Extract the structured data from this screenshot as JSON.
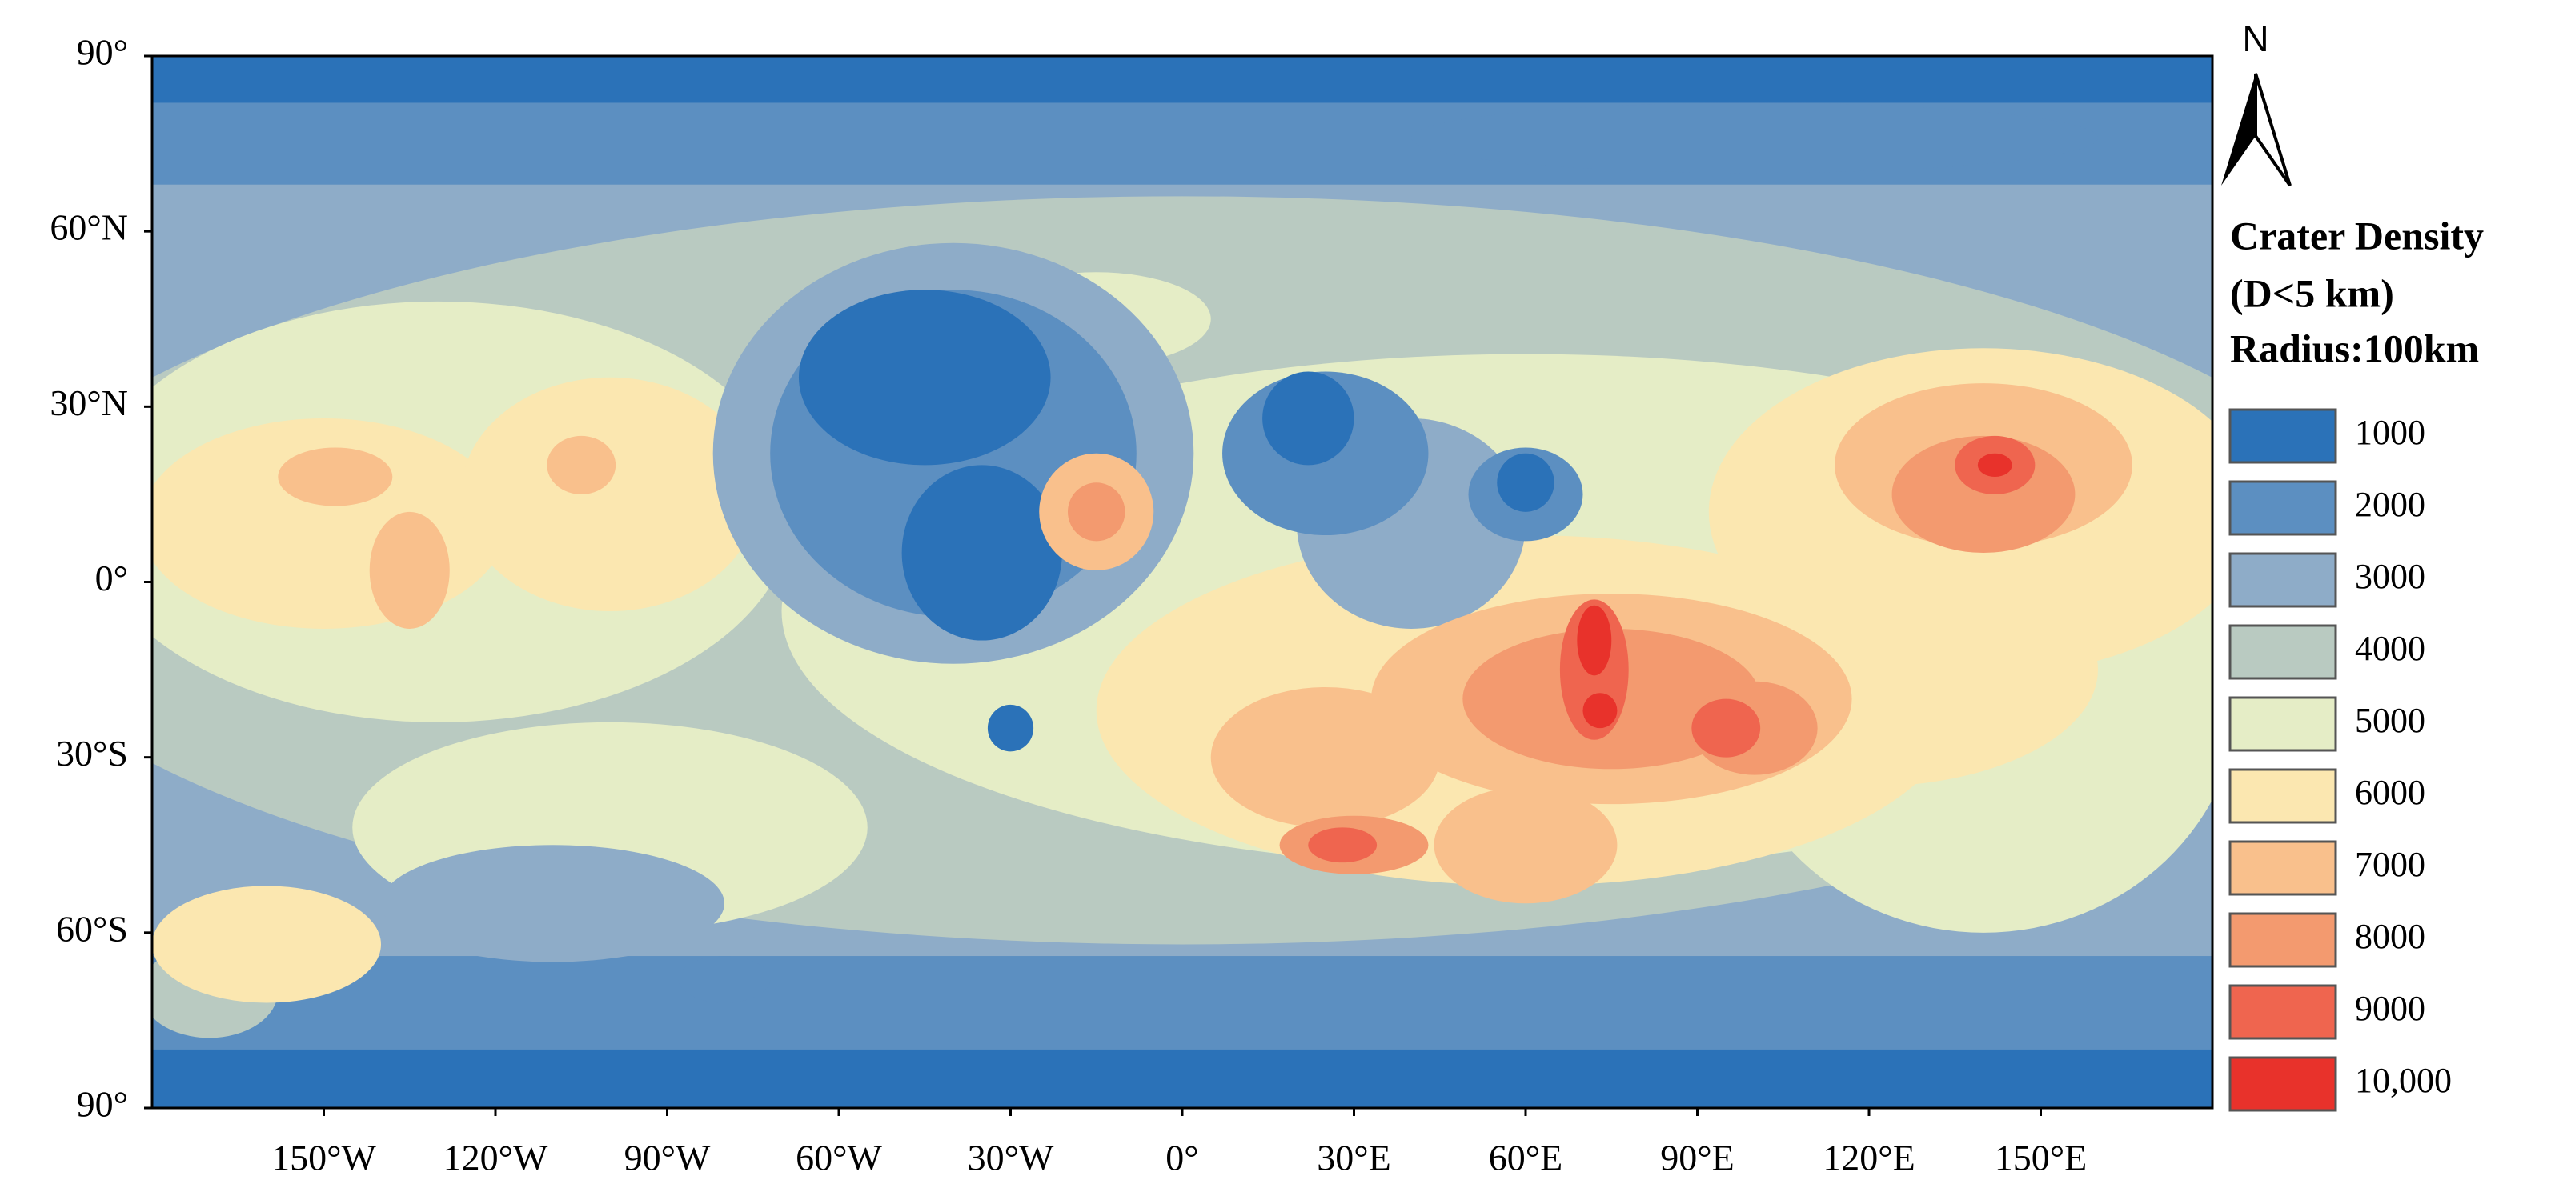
{
  "axes": {
    "y_labels": [
      "90°",
      "60°N",
      "30°N",
      "0°",
      "30°S",
      "60°S",
      "90°"
    ],
    "x_labels": [
      "150°W",
      "120°W",
      "90°W",
      "60°W",
      "30°W",
      "0°",
      "30°E",
      "60°E",
      "90°E",
      "120°E",
      "150°E"
    ]
  },
  "north_arrow": {
    "label": "N"
  },
  "legend": {
    "title": [
      "Crater Density",
      "(D<5 km)",
      "Radius:100km"
    ],
    "items": [
      {
        "label": "1000",
        "color": "#2b72b8"
      },
      {
        "label": "2000",
        "color": "#5c8fc1"
      },
      {
        "label": "3000",
        "color": "#8eacc8"
      },
      {
        "label": "4000",
        "color": "#b9cac1"
      },
      {
        "label": "5000",
        "color": "#e5edc6"
      },
      {
        "label": "6000",
        "color": "#fbe7b0"
      },
      {
        "label": "7000",
        "color": "#f9c08c"
      },
      {
        "label": "8000",
        "color": "#f39a6f"
      },
      {
        "label": "9000",
        "color": "#ef654f"
      },
      {
        "label": "10,000",
        "color": "#e8322b"
      }
    ]
  }
}
